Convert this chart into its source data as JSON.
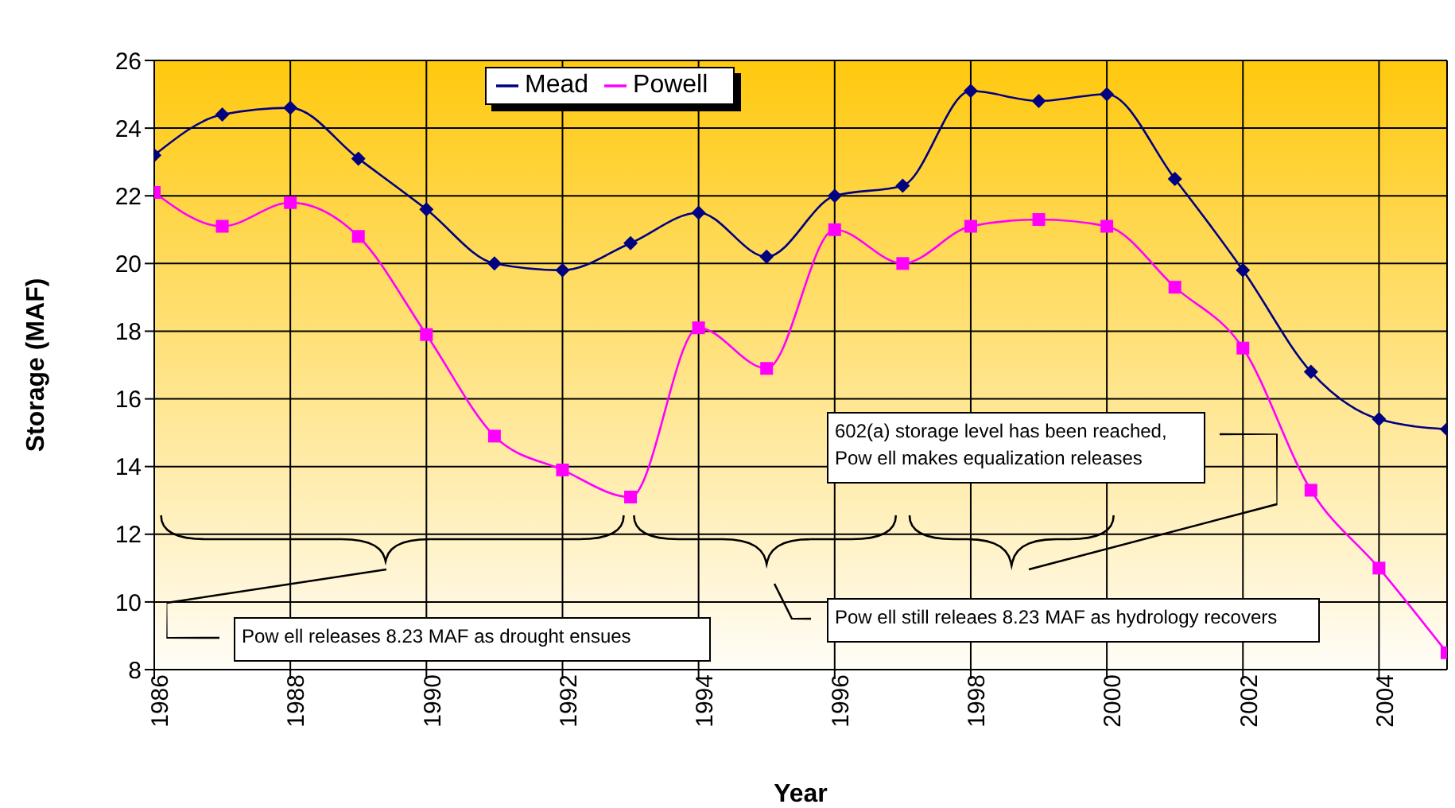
{
  "chart_data": {
    "type": "line",
    "xlabel": "Year",
    "ylabel": "Storage (MAF)",
    "x": [
      1986,
      1987,
      1988,
      1989,
      1990,
      1991,
      1992,
      1993,
      1994,
      1995,
      1996,
      1997,
      1998,
      1999,
      2000,
      2001,
      2002,
      2003,
      2004,
      2005
    ],
    "series": [
      {
        "name": "Mead",
        "color": "#000080",
        "marker": "diamond",
        "values": [
          23.2,
          24.4,
          24.6,
          23.1,
          21.6,
          20.0,
          19.8,
          20.6,
          21.5,
          20.2,
          22.0,
          22.3,
          25.1,
          24.8,
          25.0,
          22.5,
          19.8,
          16.8,
          15.4,
          15.1
        ]
      },
      {
        "name": "Powell",
        "color": "#ff00ff",
        "marker": "square",
        "values": [
          22.1,
          21.1,
          21.8,
          20.8,
          17.9,
          14.9,
          13.9,
          13.1,
          18.1,
          16.9,
          21.0,
          20.0,
          21.1,
          21.3,
          21.1,
          19.3,
          17.5,
          13.3,
          11.0,
          8.5
        ]
      }
    ],
    "xlim": [
      1986,
      2005
    ],
    "xticks": [
      1986,
      1988,
      1990,
      1992,
      1994,
      1996,
      1998,
      2000,
      2002,
      2004
    ],
    "ylim": [
      8,
      26
    ],
    "yticks": [
      8,
      10,
      12,
      14,
      16,
      18,
      20,
      22,
      24,
      26
    ],
    "grid": true,
    "legend": "top",
    "line_style": "solid",
    "annotations": [
      "Pow ell releases 8.23 MAF as drought ensues",
      "Pow ell still releaes 8.23 MAF as hydrology recovers",
      "602(a) storage level has been reached,\nPow ell makes equalization releases"
    ]
  }
}
